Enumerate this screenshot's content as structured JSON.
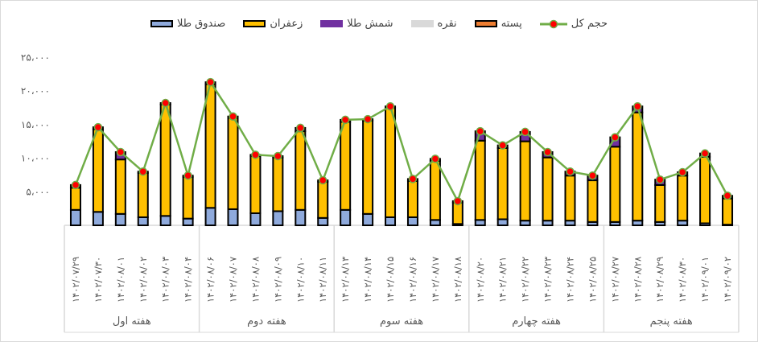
{
  "chart_data": {
    "type": "bar",
    "stacked": true,
    "title": "",
    "xlabel": "",
    "ylabel": "",
    "ylim": [
      0,
      25000
    ],
    "yticks": [
      5000,
      10000,
      15000,
      20000,
      25000
    ],
    "ytick_labels": [
      "۵،۰۰۰",
      "۱۰،۰۰۰",
      "۱۵،۰۰۰",
      "۲۰،۰۰۰",
      "۲۵،۰۰۰"
    ],
    "grid": false,
    "legend_position": "top",
    "groups": [
      {
        "label": "هفته اول",
        "categories": [
          "۱۴۰۲/۰۷/۲۹",
          "۱۴۰۲/۰۷/۳۰",
          "۱۴۰۲/۰۸/۰۱",
          "۱۴۰۲/۰۸/۰۲",
          "۱۴۰۲/۰۸/۰۳",
          "۱۴۰۲/۰۸/۰۴"
        ]
      },
      {
        "label": "هفته دوم",
        "categories": [
          "۱۴۰۲/۰۸/۰۶",
          "۱۴۰۲/۰۸/۰۷",
          "۱۴۰۲/۰۸/۰۸",
          "۱۴۰۲/۰۸/۰۹",
          "۱۴۰۲/۰۸/۱۰",
          "۱۴۰۲/۰۸/۱۱"
        ]
      },
      {
        "label": "هفته سوم",
        "categories": [
          "۱۴۰۲/۰۸/۱۳",
          "۱۴۰۲/۰۸/۱۴",
          "۱۴۰۲/۰۸/۱۵",
          "۱۴۰۲/۰۸/۱۶",
          "۱۴۰۲/۰۸/۱۷",
          "۱۴۰۲/۰۸/۱۸"
        ]
      },
      {
        "label": "هفته چهارم",
        "categories": [
          "۱۴۰۲/۰۸/۲۰",
          "۱۴۰۲/۰۸/۲۱",
          "۱۴۰۲/۰۸/۲۲",
          "۱۴۰۲/۰۸/۲۳",
          "۱۴۰۲/۰۸/۲۴",
          "۱۴۰۲/۰۸/۲۵"
        ]
      },
      {
        "label": "هفته پنجم",
        "categories": [
          "۱۴۰۲/۰۸/۲۷",
          "۱۴۰۲/۰۸/۲۸",
          "۱۴۰۲/۰۸/۲۹",
          "۱۴۰۲/۰۸/۳۰",
          "۱۴۰۲/۰۹/۰۱",
          "۱۴۰۲/۰۹/۰۲"
        ]
      }
    ],
    "series": [
      {
        "name": "صندوق طلا",
        "kind": "bar",
        "color": "#8FAADC",
        "values": [
          2300,
          2000,
          1700,
          1200,
          1400,
          1000,
          2600,
          2400,
          1800,
          2100,
          2300,
          1100,
          2300,
          1700,
          1200,
          1200,
          800,
          200,
          800,
          900,
          700,
          700,
          700,
          500,
          500,
          700,
          500,
          700,
          300,
          100
        ]
      },
      {
        "name": "زعفران",
        "kind": "bar",
        "color": "#FFC000",
        "values": [
          3300,
          12300,
          8100,
          6600,
          16600,
          6200,
          18400,
          13600,
          8500,
          8000,
          11700,
          5400,
          13100,
          13900,
          16300,
          5400,
          8800,
          3200,
          11800,
          10600,
          11800,
          9400,
          6700,
          6200,
          11200,
          16100,
          5500,
          6700,
          9900,
          3900
        ]
      },
      {
        "name": "شمش طلا",
        "kind": "bar",
        "color": "#7030A0",
        "values": [
          400,
          300,
          1100,
          200,
          200,
          200,
          300,
          200,
          200,
          200,
          500,
          200,
          300,
          200,
          200,
          300,
          300,
          200,
          1400,
          400,
          1400,
          800,
          600,
          700,
          1400,
          900,
          800,
          500,
          500,
          400
        ]
      },
      {
        "name": "نقره",
        "kind": "bar",
        "color": "#D9D9D9",
        "values": [
          0,
          0,
          0,
          0,
          0,
          0,
          0,
          0,
          0,
          0,
          0,
          0,
          0,
          0,
          0,
          0,
          0,
          0,
          0,
          0,
          0,
          0,
          0,
          0,
          0,
          0,
          0,
          0,
          0,
          0
        ]
      },
      {
        "name": "پسته",
        "kind": "bar",
        "color": "#ED7D31",
        "values": [
          0,
          0,
          0,
          0,
          0,
          0,
          0,
          0,
          0,
          0,
          0,
          0,
          0,
          0,
          0,
          0,
          0,
          0,
          0,
          0,
          0,
          0,
          0,
          0,
          0,
          0,
          0,
          0,
          0,
          0
        ]
      },
      {
        "name": "حجم کل",
        "kind": "line",
        "color": "#70AD47",
        "marker_color": "#FF0000",
        "values": [
          6000,
          14600,
          10900,
          8000,
          18200,
          7400,
          21300,
          16200,
          10500,
          10300,
          14500,
          6700,
          15700,
          15800,
          17700,
          6900,
          9900,
          3600,
          14000,
          11900,
          13900,
          10900,
          8000,
          7400,
          13100,
          17700,
          6800,
          7900,
          10700,
          4400
        ]
      }
    ]
  }
}
